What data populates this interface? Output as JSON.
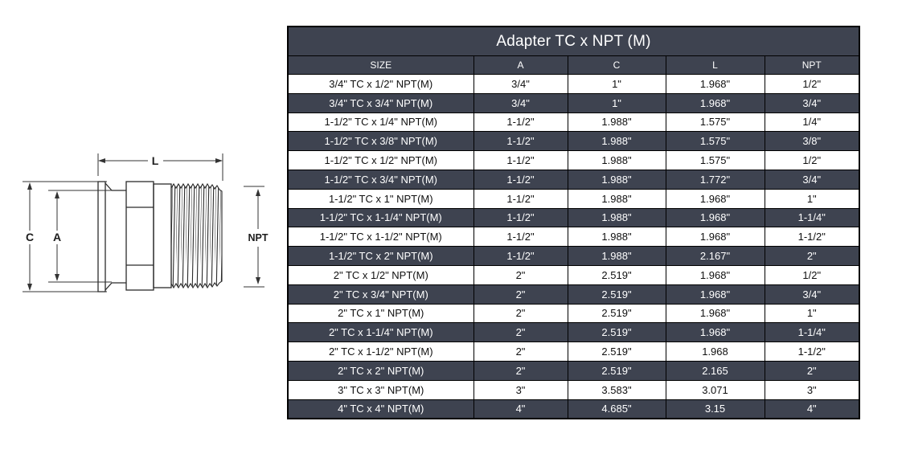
{
  "table": {
    "title": "Adapter TC x NPT (M)",
    "columns": [
      "SIZE",
      "A",
      "C",
      "L",
      "NPT"
    ],
    "rows": [
      [
        "3/4\" TC x 1/2\" NPT(M)",
        "3/4\"",
        "1\"",
        "1.968\"",
        "1/2\""
      ],
      [
        "3/4\" TC x 3/4\" NPT(M)",
        "3/4\"",
        "1\"",
        "1.968\"",
        "3/4\""
      ],
      [
        "1-1/2\" TC x 1/4\" NPT(M)",
        "1-1/2\"",
        "1.988\"",
        "1.575\"",
        "1/4\""
      ],
      [
        "1-1/2\" TC x 3/8\" NPT(M)",
        "1-1/2\"",
        "1.988\"",
        "1.575\"",
        "3/8\""
      ],
      [
        "1-1/2\" TC x 1/2\" NPT(M)",
        "1-1/2\"",
        "1.988\"",
        "1.575\"",
        "1/2\""
      ],
      [
        "1-1/2\" TC x 3/4\" NPT(M)",
        "1-1/2\"",
        "1.988\"",
        "1.772\"",
        "3/4\""
      ],
      [
        "1-1/2\" TC x 1\" NPT(M)",
        "1-1/2\"",
        "1.988\"",
        "1.968\"",
        "1\""
      ],
      [
        "1-1/2\" TC x 1-1/4\" NPT(M)",
        "1-1/2\"",
        "1.988\"",
        "1.968\"",
        "1-1/4\""
      ],
      [
        "1-1/2\" TC x 1-1/2\" NPT(M)",
        "1-1/2\"",
        "1.988\"",
        "1.968\"",
        "1-1/2\""
      ],
      [
        "1-1/2\" TC x 2\" NPT(M)",
        "1-1/2\"",
        "1.988\"",
        "2.167\"",
        "2\""
      ],
      [
        "2\" TC x 1/2\" NPT(M)",
        "2\"",
        "2.519\"",
        "1.968\"",
        "1/2\""
      ],
      [
        "2\" TC x 3/4\" NPT(M)",
        "2\"",
        "2.519\"",
        "1.968\"",
        "3/4\""
      ],
      [
        "2\" TC x 1\" NPT(M)",
        "2\"",
        "2.519\"",
        "1.968\"",
        "1\""
      ],
      [
        "2\" TC x 1-1/4\" NPT(M)",
        "2\"",
        "2.519\"",
        "1.968\"",
        "1-1/4\""
      ],
      [
        "2\" TC x 1-1/2\" NPT(M)",
        "2\"",
        "2.519\"",
        "1.968",
        "1-1/2\""
      ],
      [
        "2\" TC x 2\" NPT(M)",
        "2\"",
        "2.519\"",
        "2.165",
        "2\""
      ],
      [
        "3\" TC x 3\" NPT(M)",
        "3\"",
        "3.583\"",
        "3.071",
        "3\""
      ],
      [
        "4\" TC x 4\" NPT(M)",
        "4\"",
        "4.685\"",
        "3.15",
        "4\""
      ]
    ]
  },
  "diagram": {
    "labels": {
      "length": "L",
      "flange_od": "C",
      "inner_diameter": "A",
      "thread": "NPT"
    }
  },
  "colors": {
    "header_bg": "#3e4350",
    "alt_row_bg": "#3e4350",
    "row_bg": "#ffffff",
    "border": "#000000",
    "header_text": "#ffffff",
    "row_text": "#101010",
    "alt_row_text": "#ffffff",
    "drawing_line": "#2b2b2b"
  }
}
